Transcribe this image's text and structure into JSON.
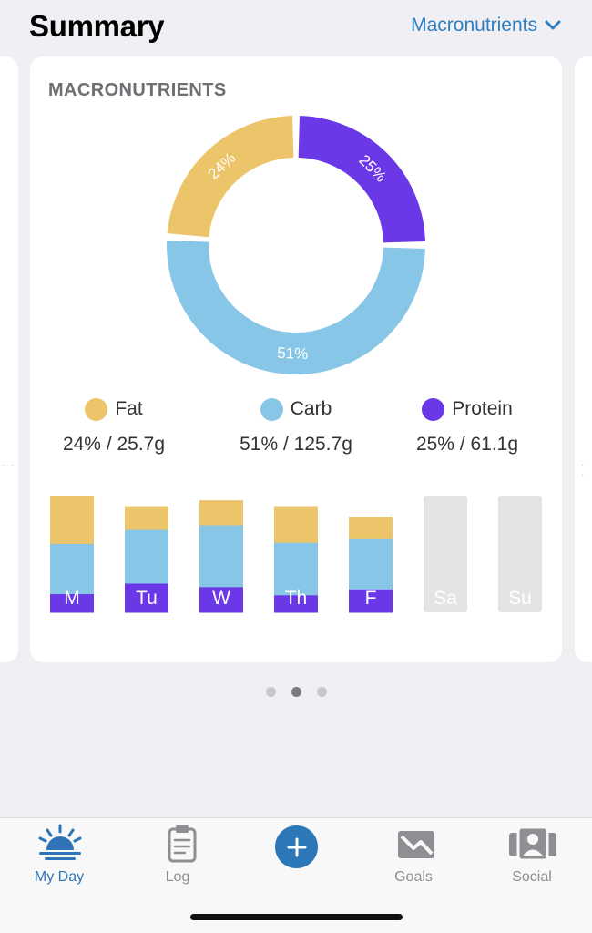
{
  "header": {
    "title": "Summary",
    "selector_label": "Macronutrients",
    "selector_icon": "chevron-down-icon"
  },
  "card": {
    "title": "MACRONUTRIENTS"
  },
  "colors": {
    "fat": "#ecc46a",
    "carb": "#87c6e6",
    "protein": "#6a38e6",
    "empty": "#e4e4e4",
    "accent": "#2d75b8"
  },
  "chart_data": [
    {
      "type": "pie",
      "style": "donut",
      "title": "MACRONUTRIENTS",
      "slices": [
        {
          "name": "Protein",
          "value": 25,
          "label": "25%"
        },
        {
          "name": "Carb",
          "value": 51,
          "label": "51%"
        },
        {
          "name": "Fat",
          "value": 24,
          "label": "24%"
        }
      ]
    },
    {
      "type": "bar",
      "stacked": true,
      "categories": [
        "M",
        "Tu",
        "W",
        "Th",
        "F",
        "Sa",
        "Su"
      ],
      "series": [
        {
          "name": "Protein",
          "values": [
            16,
            25,
            22,
            15,
            20,
            0,
            0
          ]
        },
        {
          "name": "Carb",
          "values": [
            43,
            46,
            53,
            45,
            43,
            0,
            0
          ]
        },
        {
          "name": "Fat",
          "values": [
            41,
            20,
            21,
            31,
            19,
            0,
            0
          ]
        }
      ],
      "max_total": 100,
      "empty_days": [
        "Sa",
        "Su"
      ]
    }
  ],
  "legend": [
    {
      "name": "Fat",
      "value": "24% / 25.7g"
    },
    {
      "name": "Carb",
      "value": "51% / 125.7g"
    },
    {
      "name": "Protein",
      "value": "25% / 61.1g"
    }
  ],
  "pager": {
    "count": 3,
    "active": 1
  },
  "tabs": [
    {
      "label": "My Day",
      "icon": "sunrise-icon",
      "active": true
    },
    {
      "label": "Log",
      "icon": "clipboard-icon",
      "active": false
    },
    {
      "label": "Goals",
      "icon": "goals-chart-icon",
      "active": false
    },
    {
      "label": "Social",
      "icon": "people-icon",
      "active": false
    }
  ],
  "add_button_icon": "plus-icon"
}
